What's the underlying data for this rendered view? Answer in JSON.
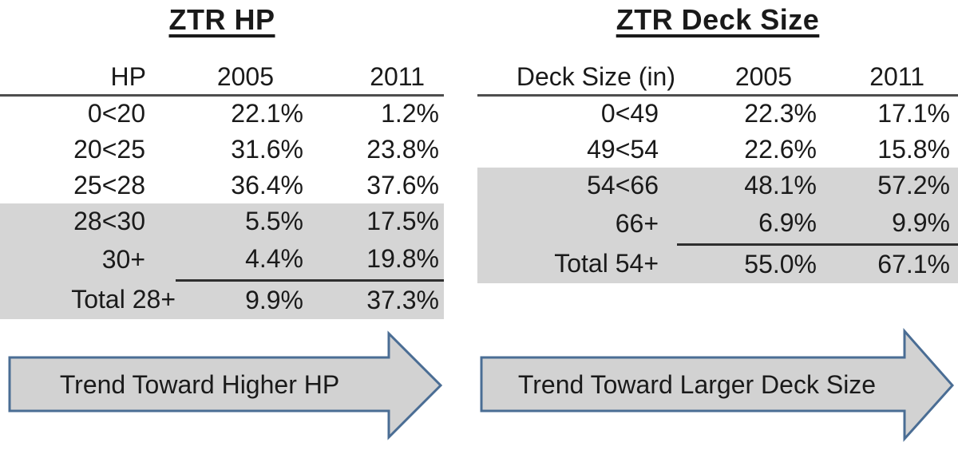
{
  "colors": {
    "shade": "#d5d5d5",
    "arrow_fill": "#d2d2d2",
    "arrow_border": "#4a6d94",
    "header_rule": "#4d4d4d",
    "subtotal_rule": "#2e2e2e",
    "ink": "#1a1a1a"
  },
  "chart_data": [
    {
      "type": "table",
      "title": "ZTR HP",
      "columns": [
        "HP",
        "2005",
        "2011"
      ],
      "rows": [
        {
          "label": "0<20",
          "y2005": "22.1%",
          "y2011": "1.2%",
          "shaded": false,
          "rule_below": false,
          "is_total": false
        },
        {
          "label": "20<25",
          "y2005": "31.6%",
          "y2011": "23.8%",
          "shaded": false,
          "rule_below": false,
          "is_total": false
        },
        {
          "label": "25<28",
          "y2005": "36.4%",
          "y2011": "37.6%",
          "shaded": false,
          "rule_below": false,
          "is_total": false
        },
        {
          "label": "28<30",
          "y2005": "5.5%",
          "y2011": "17.5%",
          "shaded": true,
          "rule_below": false,
          "is_total": false
        },
        {
          "label": "30+",
          "y2005": "4.4%",
          "y2011": "19.8%",
          "shaded": true,
          "rule_below": true,
          "is_total": false
        },
        {
          "label": "Total 28+",
          "y2005": "9.9%",
          "y2011": "37.3%",
          "shaded": true,
          "rule_below": false,
          "is_total": true
        }
      ],
      "annotation": "Trend Toward Higher HP",
      "layout_hints": {
        "shaded_rows": "28<30 through Total 28+",
        "subtotal_rule": "above Total 28+ under 2005 and 2011 columns only"
      }
    },
    {
      "type": "table",
      "title": "ZTR Deck Size",
      "columns": [
        "Deck Size (in)",
        "2005",
        "2011"
      ],
      "rows": [
        {
          "label": "0<49",
          "y2005": "22.3%",
          "y2011": "17.1%",
          "shaded": false,
          "rule_below": false,
          "is_total": false
        },
        {
          "label": "49<54",
          "y2005": "22.6%",
          "y2011": "15.8%",
          "shaded": false,
          "rule_below": false,
          "is_total": false
        },
        {
          "label": "54<66",
          "y2005": "48.1%",
          "y2011": "57.2%",
          "shaded": true,
          "rule_below": false,
          "is_total": false
        },
        {
          "label": "66+",
          "y2005": "6.9%",
          "y2011": "9.9%",
          "shaded": true,
          "rule_below": true,
          "is_total": false
        },
        {
          "label": "Total 54+",
          "y2005": "55.0%",
          "y2011": "67.1%",
          "shaded": true,
          "rule_below": false,
          "is_total": true
        }
      ],
      "annotation": "Trend Toward Larger Deck Size",
      "layout_hints": {
        "shaded_rows": "54<66 through Total 54+",
        "subtotal_rule": "above Total 54+ under 2005 and 2011 columns only"
      }
    }
  ]
}
